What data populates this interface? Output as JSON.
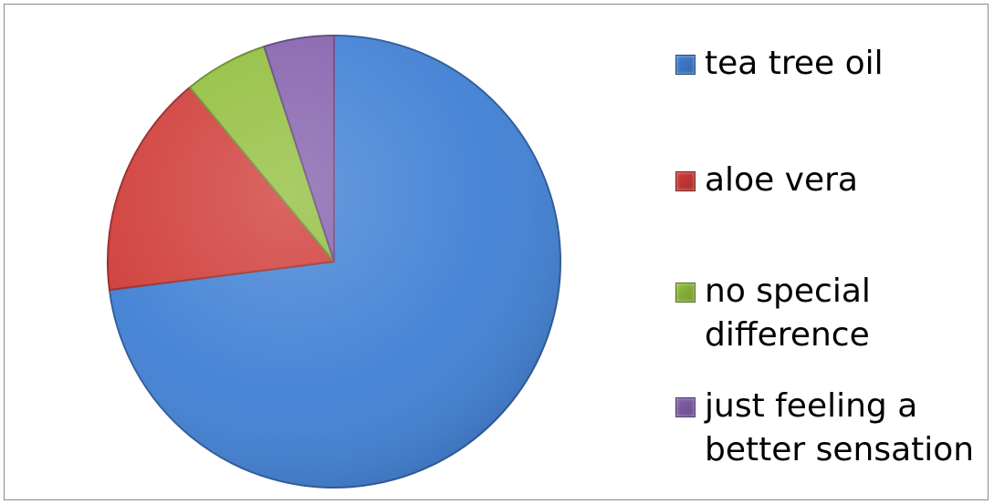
{
  "chart_data": {
    "type": "pie",
    "title": "",
    "slices": [
      {
        "label": "tea tree oil",
        "value": 73,
        "color": "#3F7FD4"
      },
      {
        "label": "aloe vera",
        "value": 16,
        "color": "#CF3B37"
      },
      {
        "label": "no special difference",
        "value": 6,
        "color": "#91BE3C"
      },
      {
        "label": "just feeling a better sensation",
        "value": 5,
        "color": "#8560AC"
      }
    ],
    "legend": {
      "position": "right",
      "entries": [
        "tea tree oil",
        "aloe vera",
        "no special\ndifference",
        "just feeling a\nbetter sensation"
      ]
    }
  }
}
